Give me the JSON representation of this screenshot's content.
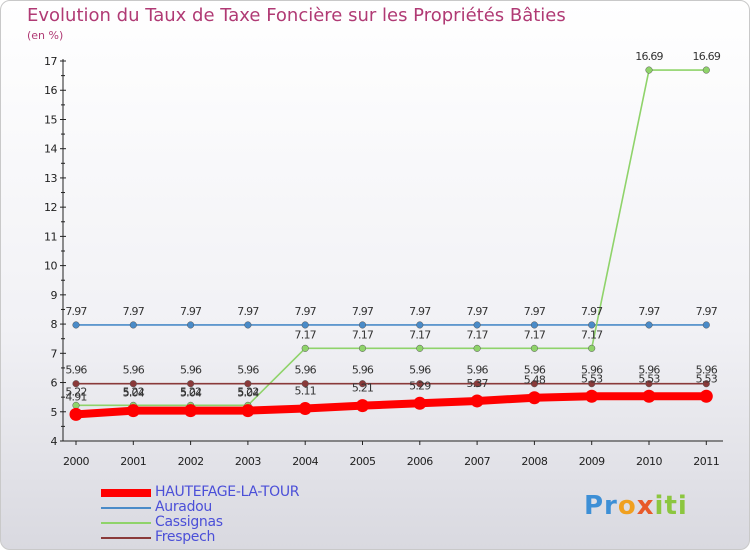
{
  "chart_data": {
    "type": "line",
    "title": "Evolution du Taux de Taxe Foncière sur les Propriétés Bâties",
    "subtitle": "(en %)",
    "x": [
      "2000",
      "2001",
      "2002",
      "2003",
      "2004",
      "2005",
      "2006",
      "2007",
      "2008",
      "2009",
      "2010",
      "2011"
    ],
    "ylim": [
      4,
      17
    ],
    "yticks": [
      "4",
      "5",
      "6",
      "7",
      "8",
      "9",
      "10",
      "11",
      "12",
      "13",
      "14",
      "15",
      "16",
      "17"
    ],
    "grid": false,
    "legend_position": "bottom-left",
    "series": [
      {
        "name": "HAUTEFAGE-LA-TOUR",
        "color": "#ff0000",
        "values": [
          4.91,
          5.04,
          5.04,
          5.04,
          5.11,
          5.21,
          5.29,
          5.37,
          5.48,
          5.53,
          5.53,
          5.53
        ],
        "labels": [
          "4.91",
          "5.04",
          "5.04",
          "5.04",
          "5.11",
          "5.21",
          "5.29",
          "5.37",
          "5.48",
          "5.53",
          "5.53",
          "5.53"
        ]
      },
      {
        "name": "Auradou",
        "color": "#4a8bc8",
        "values": [
          7.97,
          7.97,
          7.97,
          7.97,
          7.97,
          7.97,
          7.97,
          7.97,
          7.97,
          7.97,
          7.97,
          7.97
        ],
        "labels": [
          "7.97",
          "7.97",
          "7.97",
          "7.97",
          "7.97",
          "7.97",
          "7.97",
          "7.97",
          "7.97",
          "7.97",
          "7.97",
          "7.97"
        ]
      },
      {
        "name": "Cassignas",
        "color": "#8fd36a",
        "values": [
          5.22,
          5.22,
          5.22,
          5.22,
          7.17,
          7.17,
          7.17,
          7.17,
          7.17,
          7.17,
          16.69,
          16.69
        ],
        "labels": [
          "5.22",
          "5.22",
          "5.22",
          "5.22",
          "7.17",
          "7.17",
          "7.17",
          "7.17",
          "7.17",
          "7.17",
          "16.69",
          "16.69"
        ]
      },
      {
        "name": "Frespech",
        "color": "#8a3a3a",
        "values": [
          5.96,
          5.96,
          5.96,
          5.96,
          5.96,
          5.96,
          5.96,
          5.96,
          5.96,
          5.96,
          5.96,
          5.96
        ],
        "labels": [
          "5.96",
          "5.96",
          "5.96",
          "5.96",
          "5.96",
          "5.96",
          "5.96",
          "5.96",
          "5.96",
          "5.96",
          "5.96",
          "5.96"
        ]
      }
    ]
  },
  "logo": {
    "parts": [
      "Pr",
      "o",
      "x",
      "iti"
    ]
  }
}
